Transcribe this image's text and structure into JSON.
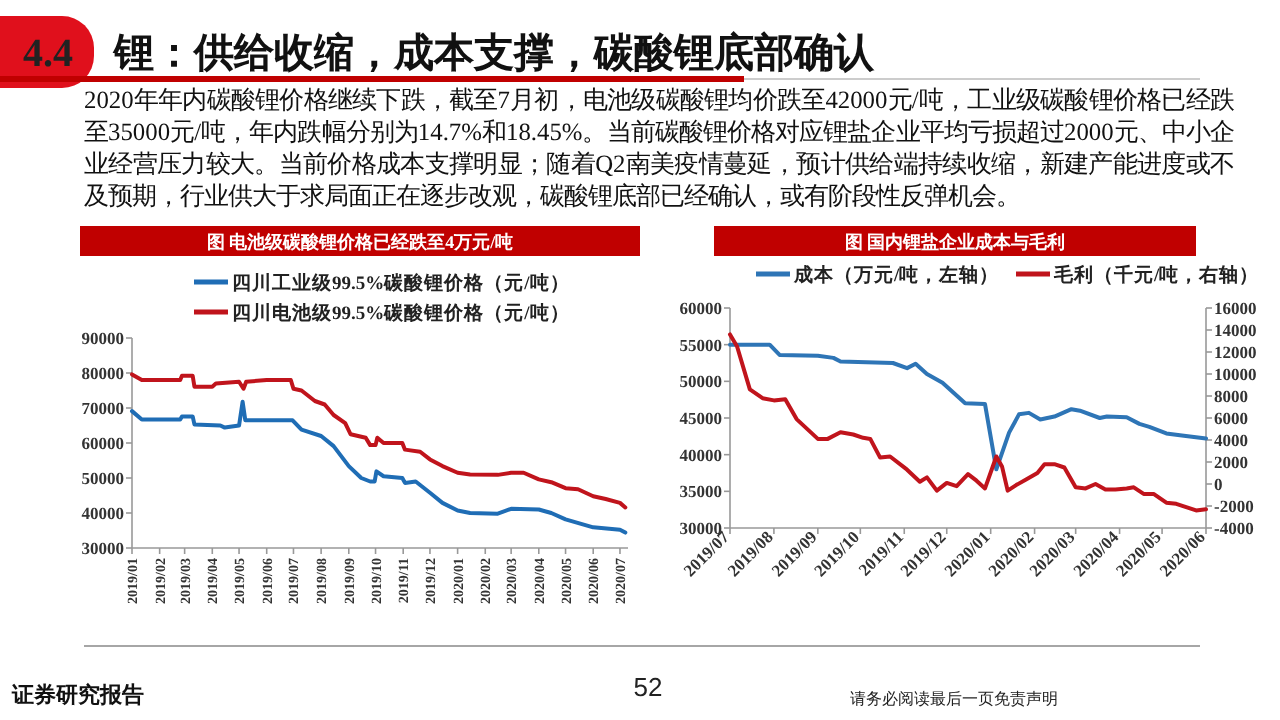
{
  "chart_data": [
    {
      "type": "line",
      "title": "图 电池级碳酸锂价格已经跌至4万元/吨",
      "legend": "top",
      "annotations": [
        "4.4",
        "锂：供给收缩，成本支撑，碳酸锂底部确认",
        "2020年年内碳酸锂价格继续下跌，截至7月初，电池级碳酸锂均价跌至42000元/吨，工业级碳酸锂价格已经跌至35000元/吨，年内跌幅分别为14.7%和18.45%。当前碳酸锂价格对应锂盐企业平均亏损超过2000元、中小企业经营压力较大。当前价格成本支撑明显；随着Q2南美疫情蔓延，预计供给端持续收缩，新建产能进度或不及预期，行业供大于求局面正在逐步改观，碳酸锂底部已经确认，或有阶段性反弹机会。"
      ],
      "xlim": [
        "2019-01-01",
        "2020-07-10"
      ],
      "xticks": [
        {
          "value": "2019-01",
          "label": "2019/01"
        },
        {
          "value": "2019-02",
          "label": "2019/02"
        },
        {
          "value": "2019-03",
          "label": "2019/03"
        },
        {
          "value": "2019-04",
          "label": "2019/04"
        },
        {
          "value": "2019-05",
          "label": "2019/05"
        },
        {
          "value": "2019-06",
          "label": "2019/06"
        },
        {
          "value": "2019-07",
          "label": "2019/07"
        },
        {
          "value": "2019-08",
          "label": "2019/08"
        },
        {
          "value": "2019-09",
          "label": "2019/09"
        },
        {
          "value": "2019-10",
          "label": "2019/10"
        },
        {
          "value": "2019-11",
          "label": "2019/11"
        },
        {
          "value": "2019-12",
          "label": "2019/12"
        },
        {
          "value": "2020-01",
          "label": "2020/01"
        },
        {
          "value": "2020-02",
          "label": "2020/02"
        },
        {
          "value": "2020-03",
          "label": "2020/03"
        },
        {
          "value": "2020-04",
          "label": "2020/04"
        },
        {
          "value": "2020-05",
          "label": "2020/05"
        },
        {
          "value": "2020-06",
          "label": "2020/06"
        },
        {
          "value": "2020-07",
          "label": "2020/07"
        }
      ],
      "ylim": [
        30000,
        90000
      ],
      "yticks": [
        30000,
        40000,
        50000,
        60000,
        70000,
        80000,
        90000
      ],
      "series": [
        {
          "name": "四川工业级99.5%碳酸锂价格（元/吨）",
          "color": "#1f6db5",
          "x": [
            "2019-01-01",
            "2019-01-12",
            "2019-02-24",
            "2019-02-26",
            "2019-03-10",
            "2019-03-12",
            "2019-04-10",
            "2019-04-15",
            "2019-05-01",
            "2019-05-05",
            "2019-05-08",
            "2019-06-30",
            "2019-07-10",
            "2019-08-01",
            "2019-08-15",
            "2019-09-01",
            "2019-09-15",
            "2019-09-25",
            "2019-09-30",
            "2019-10-02",
            "2019-10-10",
            "2019-10-31",
            "2019-11-03",
            "2019-11-15",
            "2019-12-01",
            "2019-12-15",
            "2020-01-01",
            "2020-01-15",
            "2020-02-15",
            "2020-03-01",
            "2020-04-01",
            "2020-04-15",
            "2020-05-01",
            "2020-06-01",
            "2020-07-01",
            "2020-07-07"
          ],
          "values": [
            69100,
            66700,
            66700,
            67600,
            67600,
            65300,
            65000,
            64400,
            65000,
            71800,
            66500,
            66500,
            63800,
            62000,
            59100,
            53400,
            50000,
            49000,
            49000,
            51900,
            50500,
            50000,
            48600,
            49000,
            45800,
            42900,
            40700,
            40000,
            39800,
            41200,
            41000,
            40000,
            38200,
            35900,
            35200,
            34400
          ]
        },
        {
          "name": "四川电池级99.5%碳酸锂价格（元/吨）",
          "color": "#c0141c",
          "x": [
            "2019-01-01",
            "2019-01-12",
            "2019-02-24",
            "2019-02-26",
            "2019-03-10",
            "2019-03-12",
            "2019-04-01",
            "2019-04-05",
            "2019-05-01",
            "2019-05-06",
            "2019-05-09",
            "2019-06-01",
            "2019-06-28",
            "2019-07-01",
            "2019-07-10",
            "2019-07-25",
            "2019-08-05",
            "2019-08-15",
            "2019-08-28",
            "2019-09-03",
            "2019-09-20",
            "2019-09-25",
            "2019-10-01",
            "2019-10-03",
            "2019-10-10",
            "2019-10-31",
            "2019-11-03",
            "2019-11-20",
            "2019-12-01",
            "2019-12-15",
            "2020-01-01",
            "2020-01-15",
            "2020-02-15",
            "2020-03-01",
            "2020-03-15",
            "2020-04-01",
            "2020-04-15",
            "2020-05-01",
            "2020-05-15",
            "2020-06-01",
            "2020-06-15",
            "2020-07-01",
            "2020-07-07"
          ],
          "values": [
            79600,
            78000,
            78000,
            79200,
            79200,
            76100,
            76100,
            77000,
            77500,
            75500,
            77500,
            78000,
            78000,
            75500,
            75000,
            72000,
            71000,
            68000,
            65700,
            62500,
            61500,
            59400,
            59400,
            61500,
            60000,
            60000,
            58100,
            57500,
            55300,
            53400,
            51500,
            51000,
            50900,
            51500,
            51500,
            49600,
            48800,
            47100,
            46800,
            44800,
            44000,
            42900,
            41600
          ]
        }
      ]
    },
    {
      "type": "line",
      "title": "图 国内锂盐企业成本与毛利",
      "legend": "top",
      "annotations": [
        "证券研究报告",
        "52",
        "请务必阅读最后一页免责声明"
      ],
      "xlim": [
        "2019-07-01",
        "2020-06-01"
      ],
      "xticks": [
        {
          "value": "2019-07",
          "label": "2019/07"
        },
        {
          "value": "2019-08",
          "label": "2019/08"
        },
        {
          "value": "2019-09",
          "label": "2019/09"
        },
        {
          "value": "2019-10",
          "label": "2019/10"
        },
        {
          "value": "2019-11",
          "label": "2019/11"
        },
        {
          "value": "2019-12",
          "label": "2019/12"
        },
        {
          "value": "2020-01",
          "label": "2020/01"
        },
        {
          "value": "2020-02",
          "label": "2020/02"
        },
        {
          "value": "2020-03",
          "label": "2020/03"
        },
        {
          "value": "2020-04",
          "label": "2020/04"
        },
        {
          "value": "2020-05",
          "label": "2020/05"
        },
        {
          "value": "2020-06",
          "label": "2020/06"
        }
      ],
      "ylim": [
        30000,
        60000
      ],
      "yticks": [
        30000,
        35000,
        40000,
        45000,
        50000,
        55000,
        60000
      ],
      "y2lim": [
        -4000,
        16000
      ],
      "y2ticks": [
        -4000,
        -2000,
        0,
        2000,
        4000,
        6000,
        8000,
        10000,
        12000,
        14000,
        16000
      ],
      "series": [
        {
          "name": "成本（万元/吨，左轴）",
          "color": "#2e75b6",
          "x": [
            "2019-07-01",
            "2019-07-29",
            "2019-08-05",
            "2019-09-01",
            "2019-09-12",
            "2019-09-17",
            "2019-10-24",
            "2019-11-03",
            "2019-11-09",
            "2019-11-17",
            "2019-11-28",
            "2019-12-14",
            "2019-12-28",
            "2020-01-05",
            "2020-01-14",
            "2020-01-21",
            "2020-01-28",
            "2020-02-05",
            "2020-02-15",
            "2020-02-27",
            "2020-03-04",
            "2020-03-18",
            "2020-03-23",
            "2020-04-06",
            "2020-04-15",
            "2020-04-22",
            "2020-05-04",
            "2020-05-15",
            "2020-06-01"
          ],
          "values": [
            55000,
            55000,
            53600,
            53500,
            53200,
            52700,
            52500,
            51800,
            52400,
            51000,
            49800,
            47000,
            46900,
            38000,
            43000,
            45500,
            45700,
            44800,
            45200,
            46200,
            46000,
            45000,
            45200,
            45100,
            44200,
            43800,
            42900,
            42600,
            42200
          ]
        },
        {
          "name": "毛利（千元/吨，右轴）",
          "color": "#c0141c",
          "axis": "y2",
          "x": [
            "2019-07-01",
            "2019-07-06",
            "2019-07-15",
            "2019-07-24",
            "2019-08-01",
            "2019-08-09",
            "2019-08-17",
            "2019-09-01",
            "2019-09-08",
            "2019-09-17",
            "2019-09-26",
            "2019-10-03",
            "2019-10-08",
            "2019-10-15",
            "2019-10-22",
            "2019-11-03",
            "2019-11-12",
            "2019-11-17",
            "2019-11-24",
            "2019-12-01",
            "2019-12-08",
            "2019-12-16",
            "2019-12-22",
            "2019-12-28",
            "2020-01-05",
            "2020-01-09",
            "2020-01-13",
            "2020-01-19",
            "2020-01-26",
            "2020-02-03",
            "2020-02-08",
            "2020-02-15",
            "2020-02-22",
            "2020-03-01",
            "2020-03-08",
            "2020-03-15",
            "2020-03-22",
            "2020-03-29",
            "2020-04-06",
            "2020-04-11",
            "2020-04-18",
            "2020-04-25",
            "2020-05-04",
            "2020-05-11",
            "2020-05-18",
            "2020-05-25",
            "2020-06-01"
          ],
          "values": [
            13600,
            12500,
            8600,
            7800,
            7600,
            7700,
            5900,
            4100,
            4100,
            4700,
            4500,
            4200,
            4100,
            2400,
            2500,
            1300,
            200,
            600,
            -600,
            100,
            -200,
            900,
            300,
            -400,
            2500,
            1600,
            -600,
            -100,
            400,
            1000,
            1800,
            1800,
            1500,
            -300,
            -400,
            0,
            -500,
            -500,
            -400,
            -300,
            -900,
            -900,
            -1700,
            -1800,
            -2100,
            -2400,
            -2300
          ]
        }
      ]
    }
  ]
}
